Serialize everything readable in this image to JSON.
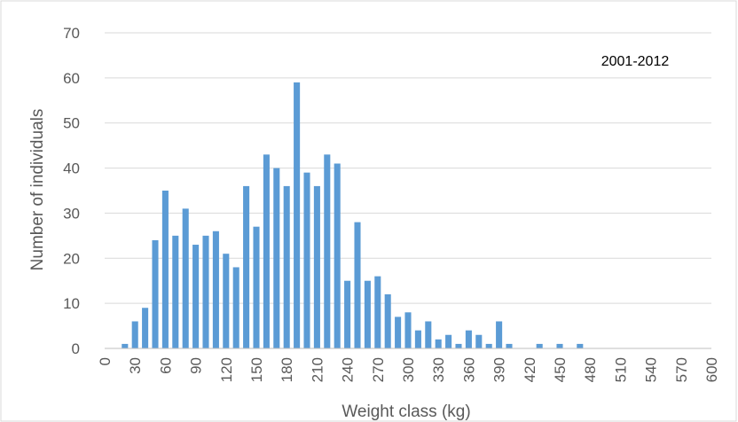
{
  "chart_data": {
    "type": "bar",
    "title": "",
    "annotation": "2001-2012",
    "xlabel": "Weight class (kg)",
    "ylabel": "Number of individuals",
    "ylim": [
      0,
      70
    ],
    "yticks": [
      0,
      10,
      20,
      30,
      40,
      50,
      60,
      70
    ],
    "xlim": [
      0,
      600
    ],
    "xticks": [
      0,
      30,
      60,
      90,
      120,
      150,
      180,
      210,
      240,
      270,
      300,
      330,
      360,
      390,
      420,
      450,
      480,
      510,
      540,
      570,
      600
    ],
    "grid": true,
    "legend": "none",
    "bar_color": "#5B9BD5",
    "x": [
      20,
      30,
      40,
      50,
      60,
      70,
      80,
      90,
      100,
      110,
      120,
      130,
      140,
      150,
      160,
      170,
      180,
      190,
      200,
      210,
      220,
      230,
      240,
      250,
      260,
      270,
      280,
      290,
      300,
      310,
      320,
      330,
      340,
      350,
      360,
      370,
      380,
      390,
      400,
      410,
      420,
      430,
      440,
      450,
      460,
      470
    ],
    "values": [
      1,
      6,
      9,
      24,
      35,
      25,
      31,
      23,
      25,
      26,
      21,
      18,
      36,
      27,
      43,
      40,
      36,
      59,
      39,
      36,
      43,
      41,
      15,
      28,
      15,
      16,
      12,
      7,
      8,
      4,
      6,
      2,
      3,
      1,
      4,
      3,
      1,
      6,
      1,
      0,
      0,
      1,
      0,
      1,
      0,
      1
    ]
  }
}
